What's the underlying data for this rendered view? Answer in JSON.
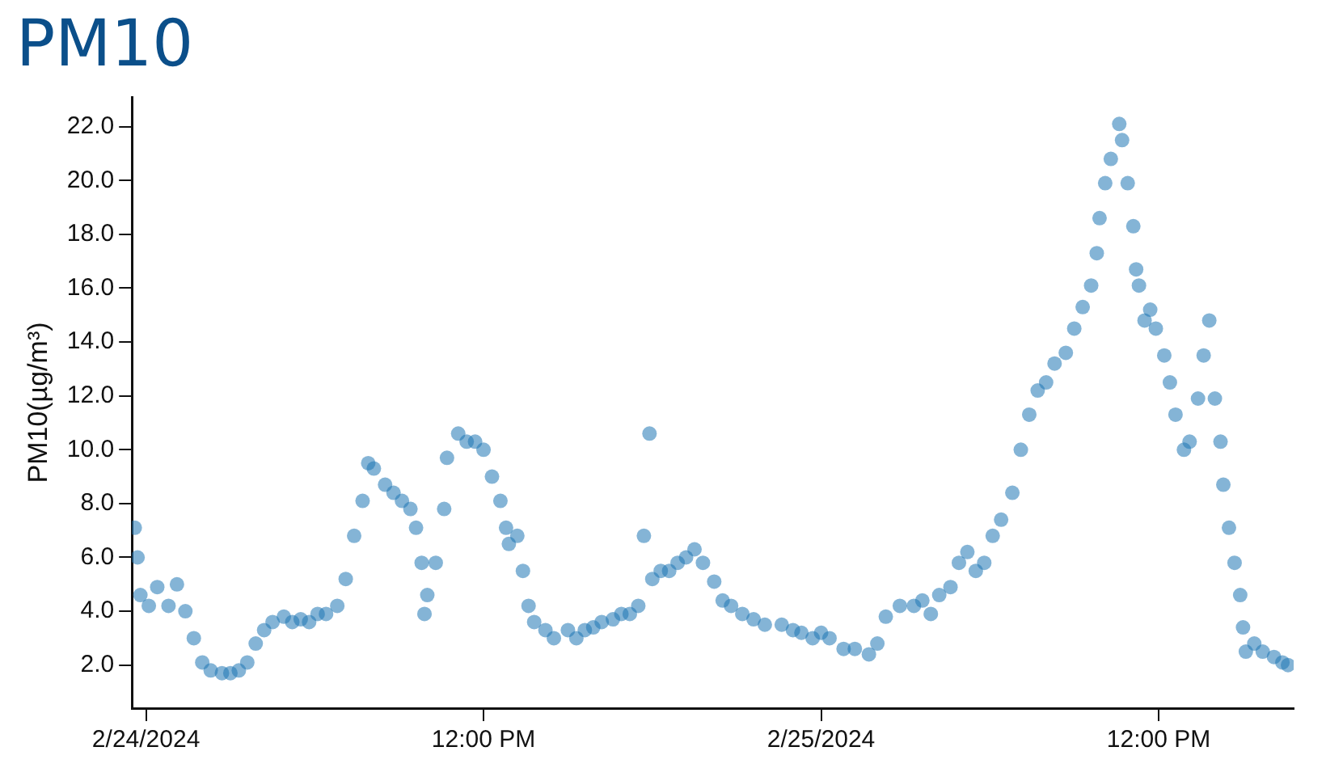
{
  "chart_data": {
    "type": "scatter",
    "title": "PM10",
    "ylabel": "PM10(µg/m³)",
    "xlim": [
      "2024-02-23T23:30",
      "2024-02-25T16:48"
    ],
    "xticks": [
      {
        "value": "2024-02-24",
        "label": "2/24/2024"
      },
      {
        "value": "2024-02-24T12:00",
        "label": "12:00 PM"
      },
      {
        "value": "2024-02-25",
        "label": "2/25/2024"
      },
      {
        "value": "2024-02-25T12:00",
        "label": "12:00 PM"
      }
    ],
    "ylim": [
      0.4,
      23.1
    ],
    "yticks": [
      {
        "value": 2,
        "label": "2.0"
      },
      {
        "value": 4,
        "label": "4.0"
      },
      {
        "value": 6,
        "label": "6.0"
      },
      {
        "value": 8,
        "label": "8.0"
      },
      {
        "value": 10,
        "label": "10.0"
      },
      {
        "value": 12,
        "label": "12.0"
      },
      {
        "value": 14,
        "label": "14.0"
      },
      {
        "value": 16,
        "label": "16.0"
      },
      {
        "value": 18,
        "label": "18.0"
      },
      {
        "value": 20,
        "label": "20.0"
      },
      {
        "value": 22,
        "label": "22.0"
      }
    ],
    "grid": false,
    "legend": false,
    "marker": "circle",
    "series": [
      {
        "color": "#1f77b4",
        "x": [
          "2024-02-23T23:36",
          "2024-02-23T23:42",
          "2024-02-23T23:48",
          "2024-02-24T00:06",
          "2024-02-24T00:24",
          "2024-02-24T00:48",
          "2024-02-24T01:06",
          "2024-02-24T01:24",
          "2024-02-24T01:42",
          "2024-02-24T02:00",
          "2024-02-24T02:18",
          "2024-02-24T02:42",
          "2024-02-24T03:00",
          "2024-02-24T03:18",
          "2024-02-24T03:36",
          "2024-02-24T03:54",
          "2024-02-24T04:12",
          "2024-02-24T04:30",
          "2024-02-24T04:54",
          "2024-02-24T05:12",
          "2024-02-24T05:30",
          "2024-02-24T05:48",
          "2024-02-24T06:06",
          "2024-02-24T06:24",
          "2024-02-24T06:48",
          "2024-02-24T07:06",
          "2024-02-24T07:24",
          "2024-02-24T07:42",
          "2024-02-24T07:54",
          "2024-02-24T08:06",
          "2024-02-24T08:30",
          "2024-02-24T08:48",
          "2024-02-24T09:06",
          "2024-02-24T09:24",
          "2024-02-24T09:36",
          "2024-02-24T09:48",
          "2024-02-24T09:54",
          "2024-02-24T10:00",
          "2024-02-24T10:18",
          "2024-02-24T10:36",
          "2024-02-24T10:42",
          "2024-02-24T11:06",
          "2024-02-24T11:24",
          "2024-02-24T11:42",
          "2024-02-24T12:00",
          "2024-02-24T12:18",
          "2024-02-24T12:36",
          "2024-02-24T12:48",
          "2024-02-24T12:54",
          "2024-02-24T13:12",
          "2024-02-24T13:24",
          "2024-02-24T13:36",
          "2024-02-24T13:48",
          "2024-02-24T14:12",
          "2024-02-24T14:30",
          "2024-02-24T15:00",
          "2024-02-24T15:18",
          "2024-02-24T15:36",
          "2024-02-24T15:54",
          "2024-02-24T16:12",
          "2024-02-24T16:36",
          "2024-02-24T16:54",
          "2024-02-24T17:12",
          "2024-02-24T17:30",
          "2024-02-24T17:42",
          "2024-02-24T17:54",
          "2024-02-24T18:00",
          "2024-02-24T18:18",
          "2024-02-24T18:36",
          "2024-02-24T18:54",
          "2024-02-24T19:12",
          "2024-02-24T19:30",
          "2024-02-24T19:48",
          "2024-02-24T20:12",
          "2024-02-24T20:30",
          "2024-02-24T20:48",
          "2024-02-24T21:12",
          "2024-02-24T21:36",
          "2024-02-24T22:00",
          "2024-02-24T22:36",
          "2024-02-24T23:00",
          "2024-02-24T23:18",
          "2024-02-24T23:42",
          "2024-02-25T00:00",
          "2024-02-25T00:18",
          "2024-02-25T00:48",
          "2024-02-25T01:12",
          "2024-02-25T01:42",
          "2024-02-25T02:00",
          "2024-02-25T02:18",
          "2024-02-25T02:48",
          "2024-02-25T03:18",
          "2024-02-25T03:36",
          "2024-02-25T03:54",
          "2024-02-25T04:12",
          "2024-02-25T04:36",
          "2024-02-25T04:54",
          "2024-02-25T05:12",
          "2024-02-25T05:30",
          "2024-02-25T05:48",
          "2024-02-25T06:06",
          "2024-02-25T06:24",
          "2024-02-25T06:48",
          "2024-02-25T07:06",
          "2024-02-25T07:24",
          "2024-02-25T07:42",
          "2024-02-25T08:00",
          "2024-02-25T08:18",
          "2024-02-25T08:42",
          "2024-02-25T09:00",
          "2024-02-25T09:18",
          "2024-02-25T09:36",
          "2024-02-25T09:48",
          "2024-02-25T09:54",
          "2024-02-25T10:06",
          "2024-02-25T10:18",
          "2024-02-25T10:36",
          "2024-02-25T10:42",
          "2024-02-25T10:54",
          "2024-02-25T11:06",
          "2024-02-25T11:12",
          "2024-02-25T11:18",
          "2024-02-25T11:30",
          "2024-02-25T11:42",
          "2024-02-25T11:54",
          "2024-02-25T12:12",
          "2024-02-25T12:24",
          "2024-02-25T12:36",
          "2024-02-25T12:54",
          "2024-02-25T13:06",
          "2024-02-25T13:24",
          "2024-02-25T13:36",
          "2024-02-25T13:48",
          "2024-02-25T14:00",
          "2024-02-25T14:12",
          "2024-02-25T14:18",
          "2024-02-25T14:30",
          "2024-02-25T14:42",
          "2024-02-25T14:54",
          "2024-02-25T15:00",
          "2024-02-25T15:06",
          "2024-02-25T15:24",
          "2024-02-25T15:42",
          "2024-02-25T16:06",
          "2024-02-25T16:24",
          "2024-02-25T16:36"
        ],
        "values": [
          7.1,
          6.0,
          4.6,
          4.2,
          4.9,
          4.2,
          5.0,
          4.0,
          3.0,
          2.1,
          1.8,
          1.7,
          1.7,
          1.8,
          2.1,
          2.8,
          3.3,
          3.6,
          3.8,
          3.6,
          3.7,
          3.6,
          3.9,
          3.9,
          4.2,
          5.2,
          6.8,
          8.1,
          9.5,
          9.3,
          8.7,
          8.4,
          8.1,
          7.8,
          7.1,
          5.8,
          3.9,
          4.6,
          5.8,
          7.8,
          9.7,
          10.6,
          10.3,
          10.3,
          10.0,
          9.0,
          8.1,
          7.1,
          6.5,
          6.8,
          5.5,
          4.2,
          3.6,
          3.3,
          3.0,
          3.3,
          3.0,
          3.3,
          3.4,
          3.6,
          3.7,
          3.9,
          3.9,
          4.2,
          6.8,
          10.6,
          5.2,
          5.5,
          5.5,
          5.8,
          6.0,
          6.3,
          5.8,
          5.1,
          4.4,
          4.2,
          3.9,
          3.7,
          3.5,
          3.5,
          3.3,
          3.2,
          3.0,
          3.2,
          3.0,
          2.6,
          2.6,
          2.4,
          2.8,
          3.8,
          4.2,
          4.2,
          4.4,
          3.9,
          4.6,
          4.9,
          5.8,
          6.2,
          5.5,
          5.8,
          6.8,
          7.4,
          8.4,
          10.0,
          11.3,
          12.2,
          12.5,
          13.2,
          13.6,
          14.5,
          15.3,
          16.1,
          17.3,
          18.6,
          19.9,
          20.8,
          22.1,
          21.5,
          19.9,
          18.3,
          16.7,
          16.1,
          14.8,
          15.2,
          14.5,
          13.5,
          12.5,
          11.3,
          10.0,
          10.3,
          11.9,
          13.5,
          14.8,
          11.9,
          10.3,
          8.7,
          7.1,
          5.8,
          4.6,
          3.4,
          2.5,
          2.8,
          2.5,
          2.3,
          2.1,
          2.0
        ]
      }
    ]
  }
}
